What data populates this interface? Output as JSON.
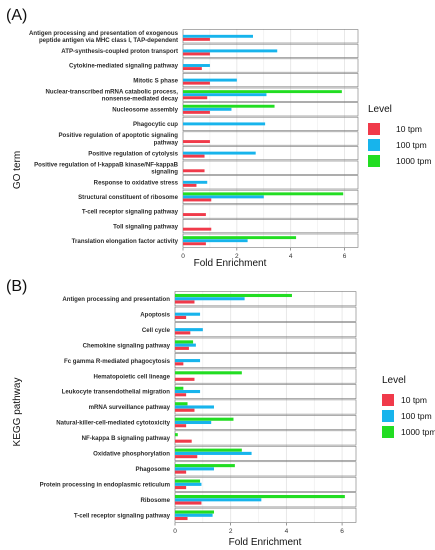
{
  "colors": {
    "10 tpm": "#f03a4a",
    "100 tpm": "#17b4ec",
    "1000 tpm": "#22dd22"
  },
  "legend": {
    "title": "Level",
    "items": [
      "10 tpm",
      "100 tpm",
      "1000 tpm"
    ]
  },
  "chart_data": [
    {
      "type": "bar",
      "panel_label": "(A)",
      "xlabel": "Fold Enrichment",
      "ylabel": "GO term",
      "xlim": [
        0,
        6.5
      ],
      "xticks": [
        0,
        2,
        4,
        6
      ],
      "categories": [
        "Antigen processing and presentation of exogenous peptide antigen via MHC class I, TAP-dependent",
        "ATP-synthesis-coupled proton transport",
        "Cytokine-mediated signaling pathway",
        "Mitotic S phase",
        "Nuclear-transcribed mRNA catabolic process, nonsense-mediated decay",
        "Nucleosome assembly",
        "Phagocytic cup",
        "Positive regulation of apoptotic signaling pathway",
        "Positive regulation of cytolysis",
        "Positive regulation of I-kappaB kinase/NF-kappaB signaling",
        "Response to oxidative stress",
        "Structural constituent of ribosome",
        "T-cell receptor signaling pathway",
        "Toll signaling pathway",
        "Translation elongation factor activity"
      ],
      "series": [
        {
          "name": "1000 tpm",
          "values": [
            null,
            null,
            null,
            null,
            5.9,
            3.4,
            null,
            null,
            null,
            null,
            null,
            5.95,
            null,
            null,
            4.2
          ]
        },
        {
          "name": "100 tpm",
          "values": [
            2.6,
            3.5,
            1.0,
            2.0,
            3.1,
            1.8,
            3.05,
            null,
            2.7,
            null,
            0.9,
            3.0,
            null,
            null,
            2.4
          ]
        },
        {
          "name": "10 tpm",
          "values": [
            1.0,
            1.0,
            0.7,
            1.0,
            0.9,
            1.0,
            null,
            1.0,
            0.8,
            0.8,
            0.5,
            1.05,
            0.85,
            1.05,
            0.85
          ]
        }
      ]
    },
    {
      "type": "bar",
      "panel_label": "(B)",
      "xlabel": "Fold Enrichment",
      "ylabel": "KEGG pathway",
      "xlim": [
        0,
        6.5
      ],
      "xticks": [
        0,
        2,
        4,
        6
      ],
      "categories": [
        "Antigen processing and presentation",
        "Apoptosis",
        "Cell cycle",
        "Chemokine signaling pathway",
        "Fc gamma R-mediated phagocytosis",
        "Hematopoietic cell lineage",
        "Leukocyte transendothelial migration",
        "mRNA surveillance pathway",
        "Natural-killer-cell-mediated cytotoxicity",
        "NF-kappa B signaling pathway",
        "Oxidative phosphorylation",
        "Phagosome",
        "Protein processing in endoplasmic reticulum",
        "Ribosome",
        "T-cell receptor signaling pathway"
      ],
      "series": [
        {
          "name": "1000 tpm",
          "values": [
            4.2,
            null,
            null,
            0.65,
            null,
            2.4,
            0.3,
            0.45,
            2.1,
            0.1,
            2.4,
            2.15,
            0.9,
            6.1,
            1.4
          ]
        },
        {
          "name": "100 tpm",
          "values": [
            2.5,
            0.9,
            1.0,
            0.75,
            0.9,
            null,
            0.9,
            1.4,
            1.3,
            null,
            2.75,
            1.4,
            0.95,
            3.1,
            1.35
          ]
        },
        {
          "name": "10 tpm",
          "values": [
            0.7,
            0.4,
            0.55,
            0.5,
            0.3,
            0.7,
            0.4,
            0.7,
            0.4,
            0.6,
            0.8,
            0.4,
            0.4,
            0.95,
            0.45
          ]
        }
      ]
    }
  ]
}
